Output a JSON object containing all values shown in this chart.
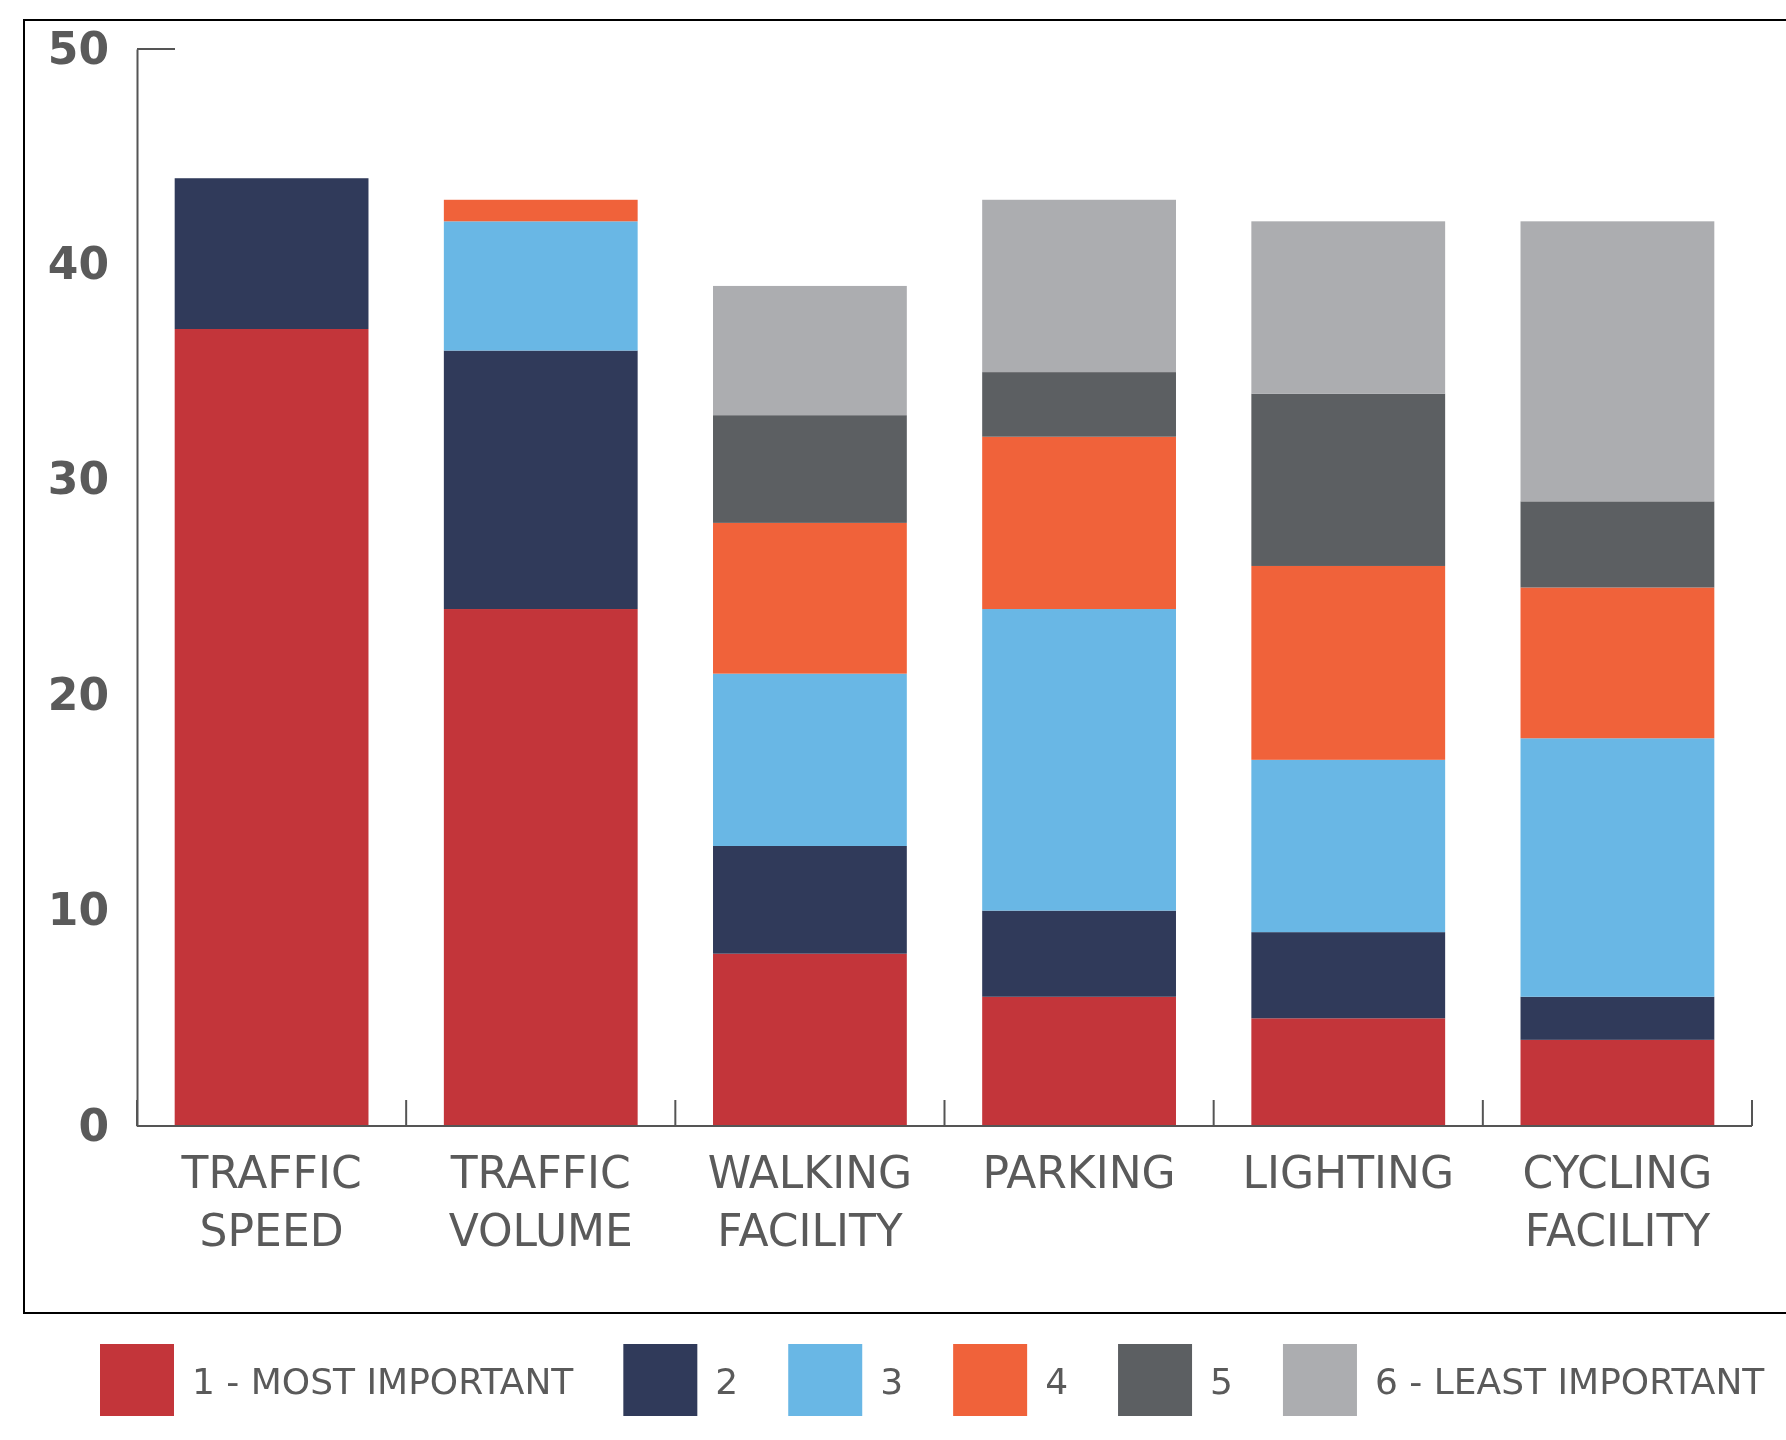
{
  "chart_data": {
    "type": "bar",
    "stacked": true,
    "categories": [
      "TRAFFIC SPEED",
      "TRAFFIC VOLUME",
      "WALKING FACILITY",
      "PARKING",
      "LIGHTING",
      "CYCLING FACILITY"
    ],
    "series": [
      {
        "name": "1 - MOST IMPORTANT",
        "color": "#c3353a",
        "values": [
          37,
          24,
          8,
          6,
          5,
          4
        ]
      },
      {
        "name": "2",
        "color": "#303a5a",
        "values": [
          7,
          12,
          5,
          4,
          4,
          2
        ]
      },
      {
        "name": "3",
        "color": "#69b7e5",
        "values": [
          0,
          6,
          8,
          14,
          8,
          12
        ]
      },
      {
        "name": "4",
        "color": "#f0623a",
        "values": [
          0,
          1,
          7,
          8,
          9,
          7
        ]
      },
      {
        "name": "5",
        "color": "#5c5f62",
        "values": [
          0,
          0,
          5,
          3,
          8,
          4
        ]
      },
      {
        "name": "6 - LEAST IMPORTANT",
        "color": "#acadb0",
        "values": [
          0,
          0,
          6,
          8,
          8,
          13
        ]
      }
    ],
    "ylim": [
      0,
      50
    ],
    "yticks": [
      0,
      10,
      20,
      30,
      40,
      50
    ],
    "grid": false,
    "legend": "bottom"
  }
}
